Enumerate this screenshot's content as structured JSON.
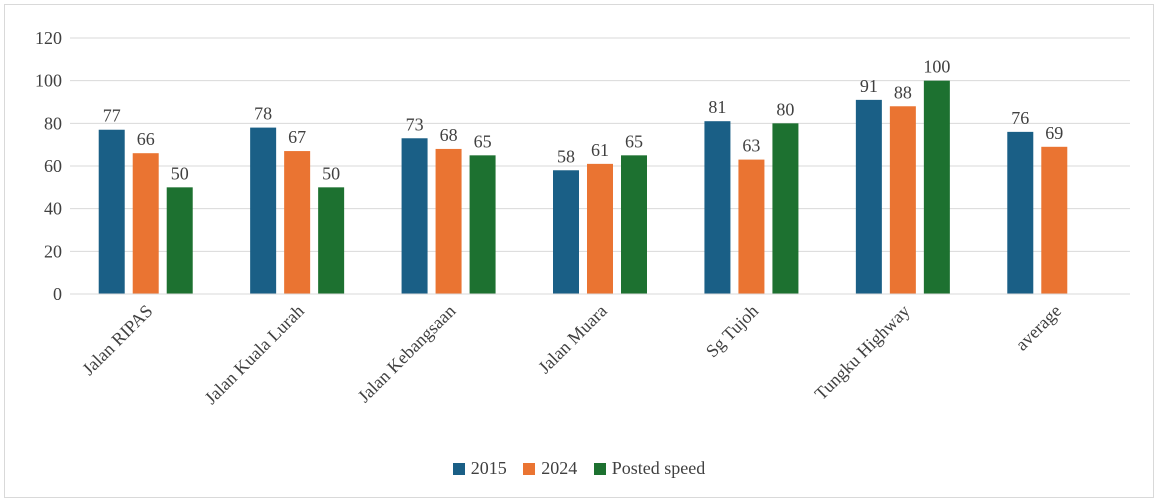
{
  "chart_data": {
    "type": "bar",
    "categories": [
      "Jalan RIPAS",
      "Jalan Kuala Lurah",
      "Jalan Kebangsaan",
      "Jalan Muara",
      "Sg Tujoh",
      "Tungku Highway",
      "average"
    ],
    "series": [
      {
        "name": "2015",
        "values": [
          77,
          78,
          73,
          58,
          81,
          91,
          76
        ],
        "color": "#1a5f86"
      },
      {
        "name": "2024",
        "values": [
          66,
          67,
          68,
          61,
          63,
          88,
          69
        ],
        "color": "#ea7432"
      },
      {
        "name": "Posted speed",
        "values": [
          50,
          50,
          65,
          65,
          80,
          100,
          null
        ],
        "color": "#1d7130"
      }
    ],
    "ylim": [
      0,
      120
    ],
    "yticks": [
      0,
      20,
      40,
      60,
      80,
      100,
      120
    ],
    "title": "",
    "xlabel": "",
    "ylabel": "",
    "grid": true,
    "legend_position": "bottom"
  },
  "colors": {
    "grid": "#d9d9d9",
    "text": "#404040"
  }
}
